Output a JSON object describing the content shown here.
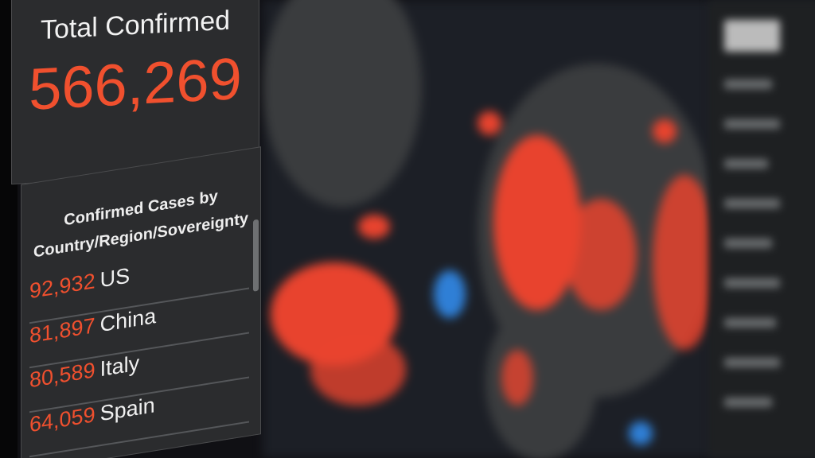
{
  "total": {
    "label": "Total Confirmed",
    "value": "566,269"
  },
  "list": {
    "title_line1": "Confirmed Cases by",
    "title_line2": "Country/Region/Sovereignty",
    "rows": [
      {
        "count": "92,932",
        "country": "US"
      },
      {
        "count": "81,897",
        "country": "China"
      },
      {
        "count": "80,589",
        "country": "Italy"
      },
      {
        "count": "64,059",
        "country": "Spain"
      }
    ]
  },
  "colors": {
    "accent": "#f0502e",
    "panel": "#2b2c2e",
    "map_water": "#1c1f26"
  }
}
